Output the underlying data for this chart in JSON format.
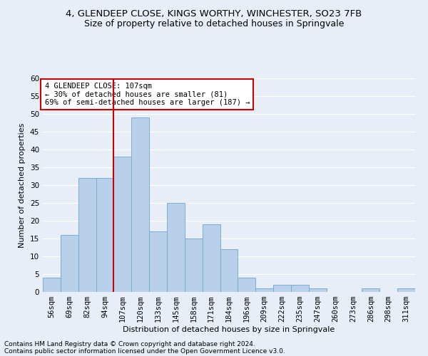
{
  "title1": "4, GLENDEEP CLOSE, KINGS WORTHY, WINCHESTER, SO23 7FB",
  "title2": "Size of property relative to detached houses in Springvale",
  "xlabel": "Distribution of detached houses by size in Springvale",
  "ylabel": "Number of detached properties",
  "footnote1": "Contains HM Land Registry data © Crown copyright and database right 2024.",
  "footnote2": "Contains public sector information licensed under the Open Government Licence v3.0.",
  "categories": [
    "56sqm",
    "69sqm",
    "82sqm",
    "94sqm",
    "107sqm",
    "120sqm",
    "133sqm",
    "145sqm",
    "158sqm",
    "171sqm",
    "184sqm",
    "196sqm",
    "209sqm",
    "222sqm",
    "235sqm",
    "247sqm",
    "260sqm",
    "273sqm",
    "286sqm",
    "298sqm",
    "311sqm"
  ],
  "values": [
    4,
    16,
    32,
    32,
    38,
    49,
    17,
    25,
    15,
    19,
    12,
    4,
    1,
    2,
    2,
    1,
    0,
    0,
    1,
    0,
    1
  ],
  "bar_color": "#b8d0ea",
  "bar_edge_color": "#7aadd4",
  "highlight_x": "107sqm",
  "highlight_line_color": "#cc0000",
  "annotation_text": "4 GLENDEEP CLOSE: 107sqm\n← 30% of detached houses are smaller (81)\n69% of semi-detached houses are larger (187) →",
  "annotation_box_color": "#ffffff",
  "annotation_box_edge": "#cc0000",
  "ylim": [
    0,
    60
  ],
  "yticks": [
    0,
    5,
    10,
    15,
    20,
    25,
    30,
    35,
    40,
    45,
    50,
    55,
    60
  ],
  "bg_color": "#e8eef7",
  "plot_bg_color": "#e8eef7",
  "grid_color": "#ffffff",
  "title1_fontsize": 9.5,
  "title2_fontsize": 9,
  "axis_label_fontsize": 8,
  "tick_fontsize": 7.5,
  "annotation_fontsize": 7.5,
  "footnote_fontsize": 6.5
}
